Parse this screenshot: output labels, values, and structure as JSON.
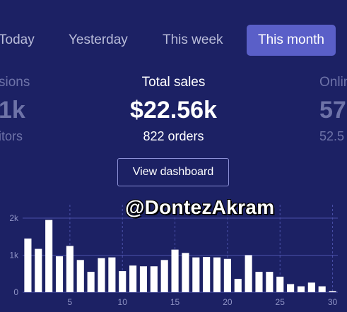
{
  "tabs": [
    {
      "label": "Today",
      "active": false
    },
    {
      "label": "Yesterday",
      "active": false
    },
    {
      "label": "This week",
      "active": false
    },
    {
      "label": "This month",
      "active": true
    }
  ],
  "stats": {
    "left": {
      "label": "sions",
      "value": "1k",
      "sub": "itors"
    },
    "center": {
      "label": "Total sales",
      "value": "$22.56k",
      "sub": "822 orders"
    },
    "right": {
      "label": "Onlin",
      "value": "57",
      "sub": "52.5"
    }
  },
  "dashboard_button": {
    "label": "View dashboard"
  },
  "watermark": "@DontezAkram",
  "colors": {
    "background": "#1c2164",
    "accent": "#5a5fc8",
    "bar": "#ffffff",
    "grid": "#4a50a8"
  },
  "chart_data": {
    "type": "bar",
    "x": [
      1,
      2,
      3,
      4,
      5,
      6,
      7,
      8,
      9,
      10,
      11,
      12,
      13,
      14,
      15,
      16,
      17,
      18,
      19,
      20,
      21,
      22,
      23,
      24,
      25,
      26,
      27,
      28,
      29,
      30
    ],
    "values": [
      1450,
      1170,
      1950,
      970,
      1250,
      870,
      550,
      920,
      940,
      570,
      720,
      700,
      700,
      870,
      1150,
      1060,
      940,
      950,
      940,
      900,
      360,
      1000,
      550,
      550,
      420,
      220,
      160,
      260,
      160,
      30
    ],
    "y_ticks": [
      "0",
      "1k",
      "2k"
    ],
    "y_tick_values": [
      0,
      1000,
      2000
    ],
    "x_ticks": [
      "5",
      "10",
      "15",
      "20",
      "25",
      "30"
    ],
    "x_tick_values": [
      5,
      10,
      15,
      20,
      25,
      30
    ],
    "ylim": [
      0,
      2000
    ],
    "grid": true
  }
}
